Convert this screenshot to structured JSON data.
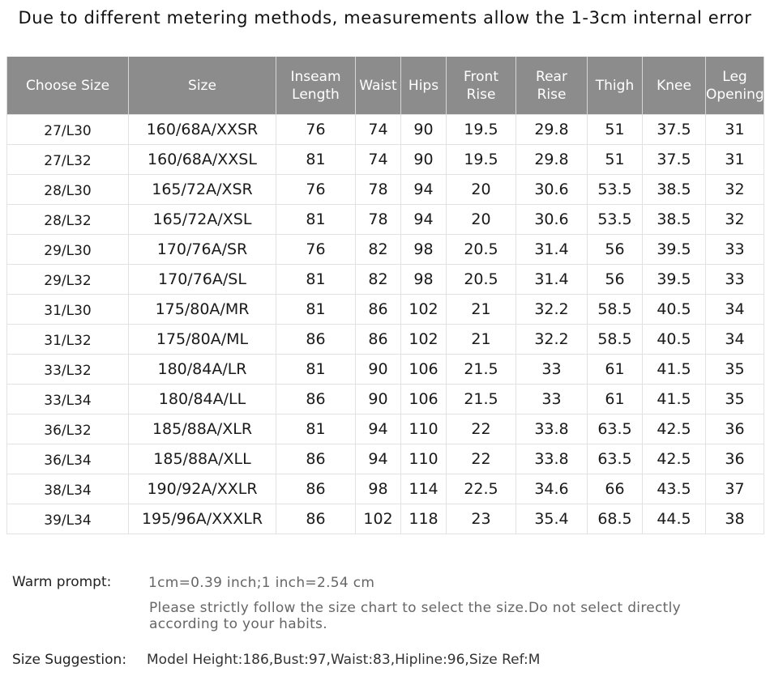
{
  "heading": "Due to different metering methods, measurements allow the 1-3cm internal error",
  "table": {
    "headers": [
      [
        "Choose Size"
      ],
      [
        "Size"
      ],
      [
        "Inseam",
        "Length"
      ],
      [
        "Waist"
      ],
      [
        "Hips"
      ],
      [
        "Front",
        "Rise"
      ],
      [
        "Rear",
        "Rise"
      ],
      [
        "Thigh"
      ],
      [
        "Knee"
      ],
      [
        "Leg",
        "Opening"
      ]
    ],
    "rows": [
      [
        "27/L30",
        "160/68A/XXSR",
        "76",
        "74",
        "90",
        "19.5",
        "29.8",
        "51",
        "37.5",
        "31"
      ],
      [
        "27/L32",
        "160/68A/XXSL",
        "81",
        "74",
        "90",
        "19.5",
        "29.8",
        "51",
        "37.5",
        "31"
      ],
      [
        "28/L30",
        "165/72A/XSR",
        "76",
        "78",
        "94",
        "20",
        "30.6",
        "53.5",
        "38.5",
        "32"
      ],
      [
        "28/L32",
        "165/72A/XSL",
        "81",
        "78",
        "94",
        "20",
        "30.6",
        "53.5",
        "38.5",
        "32"
      ],
      [
        "29/L30",
        "170/76A/SR",
        "76",
        "82",
        "98",
        "20.5",
        "31.4",
        "56",
        "39.5",
        "33"
      ],
      [
        "29/L32",
        "170/76A/SL",
        "81",
        "82",
        "98",
        "20.5",
        "31.4",
        "56",
        "39.5",
        "33"
      ],
      [
        "31/L30",
        "175/80A/MR",
        "81",
        "86",
        "102",
        "21",
        "32.2",
        "58.5",
        "40.5",
        "34"
      ],
      [
        "31/L32",
        "175/80A/ML",
        "86",
        "86",
        "102",
        "21",
        "32.2",
        "58.5",
        "40.5",
        "34"
      ],
      [
        "33/L32",
        "180/84A/LR",
        "81",
        "90",
        "106",
        "21.5",
        "33",
        "61",
        "41.5",
        "35"
      ],
      [
        "33/L34",
        "180/84A/LL",
        "86",
        "90",
        "106",
        "21.5",
        "33",
        "61",
        "41.5",
        "35"
      ],
      [
        "36/L32",
        "185/88A/XLR",
        "81",
        "94",
        "110",
        "22",
        "33.8",
        "63.5",
        "42.5",
        "36"
      ],
      [
        "36/L34",
        "185/88A/XLL",
        "86",
        "94",
        "110",
        "22",
        "33.8",
        "63.5",
        "42.5",
        "36"
      ],
      [
        "38/L34",
        "190/92A/XXLR",
        "86",
        "98",
        "114",
        "22.5",
        "34.6",
        "66",
        "43.5",
        "37"
      ],
      [
        "39/L34",
        "195/96A/XXXLR",
        "86",
        "102",
        "118",
        "23",
        "35.4",
        "68.5",
        "44.5",
        "38"
      ]
    ]
  },
  "notes": {
    "warm_label": "Warm prompt:",
    "conversion": "1cm=0.39 inch;1 inch=2.54 cm",
    "advice": "Please strictly follow the size chart  to select the size.Do not select directly according to your habits.",
    "suggestion_label": "Size Suggestion:",
    "suggestion": "Model Height:186,Bust:97,Waist:83,Hipline:96,Size Ref:M"
  },
  "colors": {
    "header_bg": "#8c8c8c",
    "header_text": "#ffffff"
  }
}
